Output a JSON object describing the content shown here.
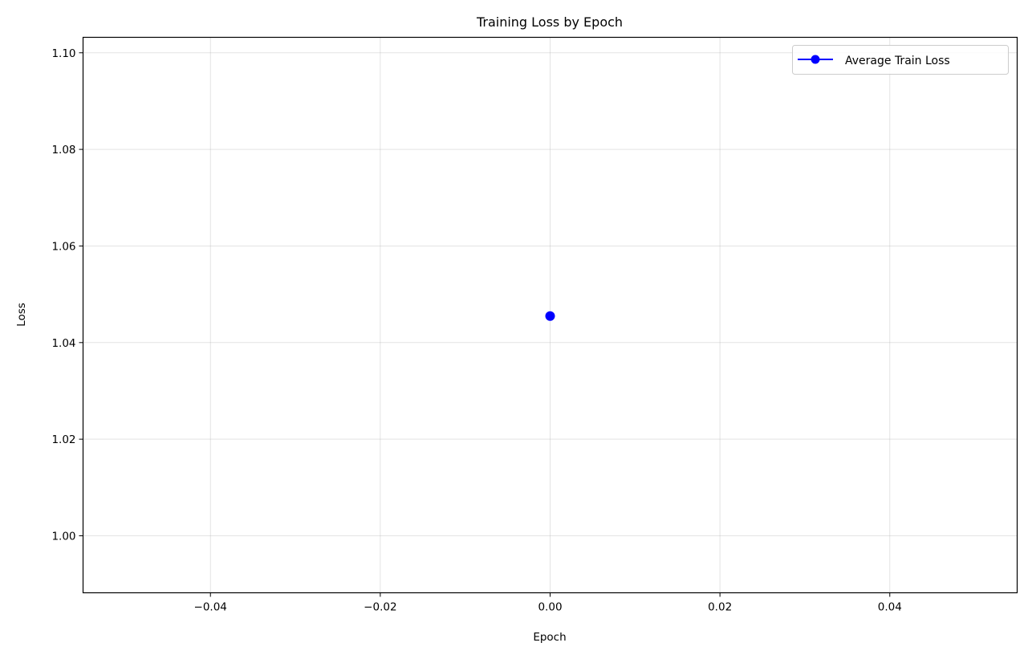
{
  "chart_data": {
    "type": "line",
    "title": "Training Loss by Epoch",
    "xlabel": "Epoch",
    "ylabel": "Loss",
    "xlim": [
      -0.055,
      0.055
    ],
    "ylim": [
      0.9882,
      1.1032
    ],
    "xticks": [
      -0.04,
      -0.02,
      0.0,
      0.02,
      0.04
    ],
    "xtick_labels": [
      "−0.04",
      "−0.02",
      "0.00",
      "0.02",
      "0.04"
    ],
    "yticks": [
      1.0,
      1.02,
      1.04,
      1.06,
      1.08,
      1.1
    ],
    "ytick_labels": [
      "1.00",
      "1.02",
      "1.04",
      "1.06",
      "1.08",
      "1.10"
    ],
    "grid": true,
    "legend_position": "top-right",
    "series": [
      {
        "name": "Average Train Loss",
        "color": "#0000ff",
        "marker": "circle",
        "x": [
          0
        ],
        "y": [
          1.0455
        ]
      }
    ]
  }
}
